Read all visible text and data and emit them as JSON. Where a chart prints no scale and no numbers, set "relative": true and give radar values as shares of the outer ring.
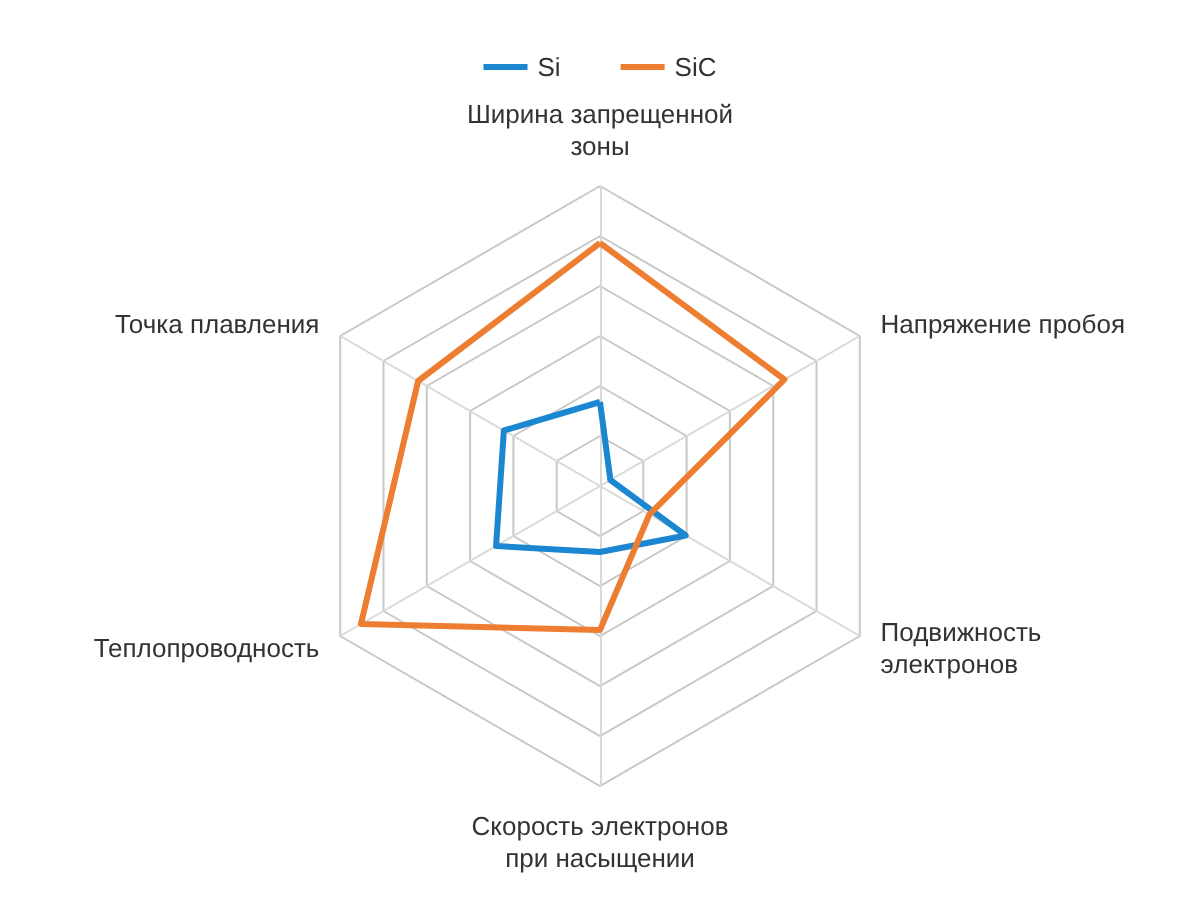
{
  "chart_data": {
    "type": "radar",
    "relative": true,
    "legend": "top",
    "marker": "none",
    "line_style": "solid",
    "grid": true,
    "categories": [
      "Ширина запрещенной зоны",
      "Напряжение пробоя",
      "Подвижность электронов",
      "Скорость электронов при насыщении",
      "Теплопроводность",
      "Точка плавления"
    ],
    "series": [
      {
        "name": "Si",
        "color": "#1a87d0",
        "values": [
          0.28,
          0.04,
          0.33,
          0.22,
          0.4,
          0.37
        ]
      },
      {
        "name": "SiC",
        "color": "#ed7d31",
        "values": [
          0.81,
          0.71,
          0.19,
          0.48,
          0.92,
          0.7
        ]
      }
    ]
  }
}
